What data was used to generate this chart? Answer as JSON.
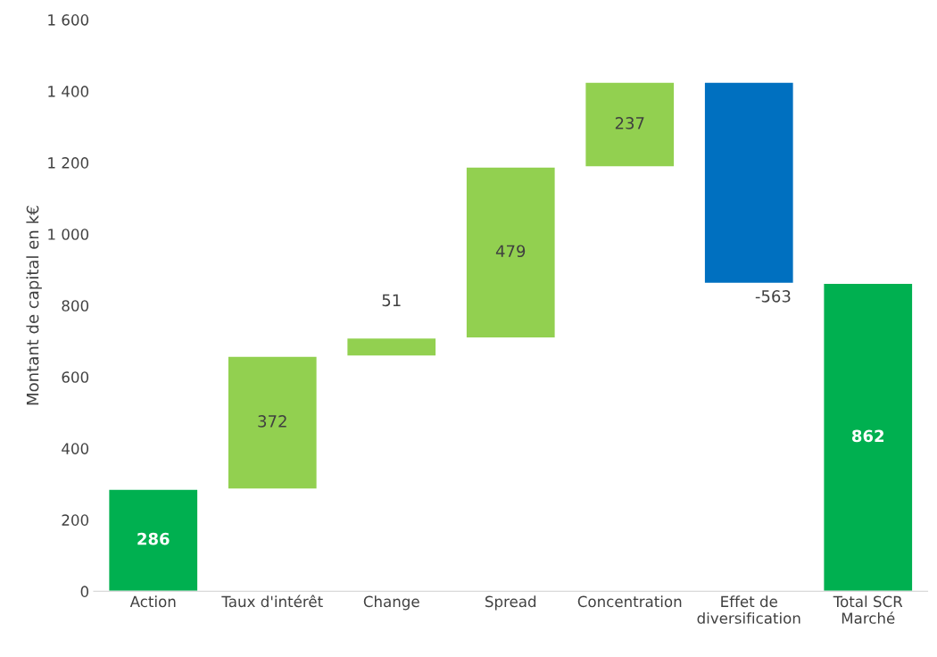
{
  "chart_data": {
    "type": "bar",
    "ylabel": "Montant de capital en k€",
    "categories": [
      "Action",
      "Taux d'intérêt",
      "Change",
      "Spread",
      "Concentration",
      "Effet de\ndiversification",
      "Total SCR\nMarché"
    ],
    "values": [
      286,
      372,
      51,
      479,
      237,
      -563,
      862
    ],
    "base": [
      0,
      286,
      658,
      709,
      1188,
      1425,
      0
    ],
    "colors": [
      "#00b050",
      "#92d050",
      "#92d050",
      "#92d050",
      "#92d050",
      "#0070c0",
      "#00b050"
    ],
    "data_labels": true,
    "ylim": [
      0,
      1600
    ],
    "yticks": [
      0,
      200,
      400,
      600,
      800,
      {
        "value": 1000,
        "label": "1 000"
      },
      {
        "value": 1200,
        "label": "1 200"
      },
      {
        "value": 1400,
        "label": "1 400"
      },
      {
        "value": 1600,
        "label": "1 600"
      }
    ],
    "grid": false,
    "legend": false
  }
}
